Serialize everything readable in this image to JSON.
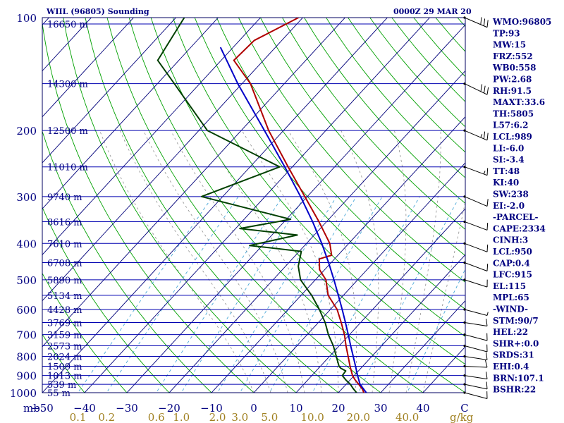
{
  "header": {
    "left_title": "WIIL (96805) Sounding",
    "right_title": "0000Z 29 MAR 20"
  },
  "colors": {
    "isobar": "#0000b0",
    "isotherm": "#00007a",
    "dry_adiabat": "#00a000",
    "mixing_ratio": "#4aa8d8",
    "moist_adiabat": "#909090",
    "temperature": "#b00000",
    "dewpoint": "#004000",
    "parcel": "#0000c8",
    "label_blue": "#000080",
    "label_gold": "#a08020"
  },
  "chart_data": {
    "type": "line",
    "chart_kind": "skew-T log-P sounding",
    "x_unit": "C",
    "y_unit": "mb",
    "xlim": [
      -50,
      50
    ],
    "ylim": [
      1000,
      100
    ],
    "pressure_ticks": [
      100,
      200,
      300,
      400,
      500,
      600,
      700,
      800,
      900,
      1000
    ],
    "temperature_ticks": [
      -50,
      -40,
      -30,
      -20,
      -10,
      0,
      10,
      20,
      30,
      40
    ],
    "mixing_ratio_unit": "g/kg",
    "mixing_ratio_ticks": [
      "0.1",
      "0.2",
      "0.6",
      "1.0",
      "2.0",
      "3.0",
      "5.0",
      "10.0",
      "20.0",
      "40.0"
    ],
    "height_levels": [
      {
        "p": 104,
        "label": "16650 m"
      },
      {
        "p": 150,
        "label": "14300 m"
      },
      {
        "p": 200,
        "label": "12500 m"
      },
      {
        "p": 250,
        "label": "11010 m"
      },
      {
        "p": 300,
        "label": "9740 m"
      },
      {
        "p": 350,
        "label": "8616 m"
      },
      {
        "p": 400,
        "label": "7610 m"
      },
      {
        "p": 450,
        "label": "6708 m"
      },
      {
        "p": 500,
        "label": "5890 m"
      },
      {
        "p": 550,
        "label": "5134 m"
      },
      {
        "p": 600,
        "label": "4428 m"
      },
      {
        "p": 650,
        "label": "3769 m"
      },
      {
        "p": 700,
        "label": "3159 m"
      },
      {
        "p": 750,
        "label": "2573 m"
      },
      {
        "p": 800,
        "label": "2024 m"
      },
      {
        "p": 850,
        "label": "1509 m"
      },
      {
        "p": 900,
        "label": "1013 m"
      },
      {
        "p": 950,
        "label": "539 m"
      },
      {
        "p": 1000,
        "label": "55 m"
      }
    ],
    "series": [
      {
        "key": "temperature",
        "points": [
          {
            "p": 1000,
            "t": 26.0
          },
          {
            "p": 980,
            "t": 25.0
          },
          {
            "p": 950,
            "t": 23.0
          },
          {
            "p": 925,
            "t": 21.2
          },
          {
            "p": 900,
            "t": 19.6
          },
          {
            "p": 850,
            "t": 17.0
          },
          {
            "p": 800,
            "t": 14.4
          },
          {
            "p": 750,
            "t": 11.6
          },
          {
            "p": 700,
            "t": 8.8
          },
          {
            "p": 650,
            "t": 5.4
          },
          {
            "p": 600,
            "t": 1.6
          },
          {
            "p": 550,
            "t": -3.6
          },
          {
            "p": 500,
            "t": -7.5
          },
          {
            "p": 470,
            "t": -11.2
          },
          {
            "p": 440,
            "t": -13.6
          },
          {
            "p": 430,
            "t": -11.5
          },
          {
            "p": 400,
            "t": -14.5
          },
          {
            "p": 350,
            "t": -21.8
          },
          {
            "p": 300,
            "t": -30.6
          },
          {
            "p": 250,
            "t": -41.0
          },
          {
            "p": 200,
            "t": -53.5
          },
          {
            "p": 150,
            "t": -68.0
          },
          {
            "p": 130,
            "t": -77.0
          },
          {
            "p": 115,
            "t": -76.5
          },
          {
            "p": 100,
            "t": -71.0
          }
        ]
      },
      {
        "key": "dewpoint",
        "points": [
          {
            "p": 1000,
            "t": 24.3
          },
          {
            "p": 975,
            "t": 22.6
          },
          {
            "p": 950,
            "t": 21.0
          },
          {
            "p": 925,
            "t": 19.0
          },
          {
            "p": 900,
            "t": 17.2
          },
          {
            "p": 875,
            "t": 17.0
          },
          {
            "p": 860,
            "t": 15.2
          },
          {
            "p": 850,
            "t": 14.4
          },
          {
            "p": 800,
            "t": 11.6
          },
          {
            "p": 750,
            "t": 8.6
          },
          {
            "p": 700,
            "t": 5.0
          },
          {
            "p": 650,
            "t": 1.6
          },
          {
            "p": 600,
            "t": -2.6
          },
          {
            "p": 550,
            "t": -7.5
          },
          {
            "p": 500,
            "t": -13.5
          },
          {
            "p": 460,
            "t": -17.0
          },
          {
            "p": 420,
            "t": -19.5
          },
          {
            "p": 405,
            "t": -33.0
          },
          {
            "p": 380,
            "t": -24.0
          },
          {
            "p": 365,
            "t": -39.0
          },
          {
            "p": 345,
            "t": -29.0
          },
          {
            "p": 300,
            "t": -55.0
          },
          {
            "p": 250,
            "t": -43.0
          },
          {
            "p": 200,
            "t": -68.0
          },
          {
            "p": 150,
            "t": -86.0
          },
          {
            "p": 130,
            "t": -95.0
          },
          {
            "p": 100,
            "t": -98.0
          }
        ]
      },
      {
        "key": "parcel",
        "points": [
          {
            "p": 1000,
            "t": 26.6
          },
          {
            "p": 950,
            "t": 23.3
          },
          {
            "p": 900,
            "t": 20.8
          },
          {
            "p": 850,
            "t": 18.3
          },
          {
            "p": 800,
            "t": 15.6
          },
          {
            "p": 750,
            "t": 12.7
          },
          {
            "p": 700,
            "t": 9.7
          },
          {
            "p": 650,
            "t": 6.4
          },
          {
            "p": 600,
            "t": 2.8
          },
          {
            "p": 550,
            "t": -1.2
          },
          {
            "p": 500,
            "t": -5.6
          },
          {
            "p": 450,
            "t": -10.6
          },
          {
            "p": 400,
            "t": -16.4
          },
          {
            "p": 350,
            "t": -23.3
          },
          {
            "p": 300,
            "t": -31.6
          },
          {
            "p": 250,
            "t": -41.8
          },
          {
            "p": 200,
            "t": -54.5
          },
          {
            "p": 150,
            "t": -71.0
          },
          {
            "p": 120,
            "t": -83.0
          }
        ]
      }
    ],
    "wind_barbs": [
      {
        "p": 1000,
        "dir": 90,
        "spd": 10
      },
      {
        "p": 950,
        "dir": 95,
        "spd": 10
      },
      {
        "p": 900,
        "dir": 100,
        "spd": 10
      },
      {
        "p": 850,
        "dir": 110,
        "spd": 10
      },
      {
        "p": 800,
        "dir": 100,
        "spd": 10
      },
      {
        "p": 750,
        "dir": 90,
        "spd": 10
      },
      {
        "p": 700,
        "dir": 90,
        "spd": 10
      },
      {
        "p": 650,
        "dir": 100,
        "spd": 10
      },
      {
        "p": 600,
        "dir": 90,
        "spd": 5
      },
      {
        "p": 500,
        "dir": 85,
        "spd": 10
      },
      {
        "p": 450,
        "dir": 80,
        "spd": 10
      },
      {
        "p": 400,
        "dir": 80,
        "spd": 10
      },
      {
        "p": 350,
        "dir": 80,
        "spd": 10
      },
      {
        "p": 300,
        "dir": 75,
        "spd": 10
      },
      {
        "p": 250,
        "dir": 80,
        "spd": 15
      },
      {
        "p": 200,
        "dir": 75,
        "spd": 25
      },
      {
        "p": 150,
        "dir": 70,
        "spd": 30
      },
      {
        "p": 100,
        "dir": 75,
        "spd": 30
      }
    ],
    "station_info": [
      "WMO:96805",
      "TP:93",
      "MW:15",
      "FRZ:552",
      "WB0:558",
      "PW:2.68",
      "RH:91.5",
      "MAXT:33.6",
      "TH:5805",
      "L57:6.2",
      "LCL:989",
      "LI:-6.0",
      "SI:-3.4",
      "TT:48",
      "KI:40",
      "SW:238",
      "EI:-2.0",
      "-PARCEL-",
      "CAPE:2334",
      "CINH:3",
      "LCL:950",
      "CAP:0.4",
      "LFC:915",
      "EL:115",
      "MPL:65",
      "-WIND-",
      "STM:90/7",
      "HEL:22",
      "SHR+:0.0",
      "SRDS:31",
      "EHI:0.4",
      "BRN:107.1",
      "BSHR:22"
    ]
  }
}
